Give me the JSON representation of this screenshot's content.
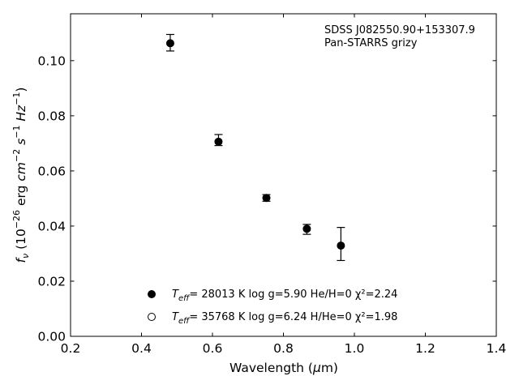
{
  "chart_data": {
    "type": "scatter",
    "xlabel_prefix": "Wavelength (",
    "xlabel_unit_greek": "μ",
    "xlabel_unit_rest": "m)",
    "ylabel": "f_ν (10^-26 erg cm^-2 s^-1 Hz^-1)",
    "xlim": [
      0.2,
      1.4
    ],
    "ylim": [
      0.0,
      0.117
    ],
    "x_ticks": [
      0.2,
      0.4,
      0.6,
      0.8,
      1.0,
      1.2,
      1.4
    ],
    "x_tick_labels": [
      "0.2",
      "0.4",
      "0.6",
      "0.8",
      "1.0",
      "1.2",
      "1.4"
    ],
    "y_ticks": [
      0.0,
      0.02,
      0.04,
      0.06,
      0.08,
      0.1
    ],
    "y_tick_labels": [
      "0.00",
      "0.02",
      "0.04",
      "0.06",
      "0.08",
      "0.10"
    ],
    "grid": false,
    "annotation": [
      "SDSS J082550.90+153307.9",
      "Pan-STARRS grizy"
    ],
    "series": [
      {
        "kind": "observed",
        "x": [
          0.481,
          0.617,
          0.752,
          0.866,
          0.962
        ],
        "y": [
          0.1065,
          0.0712,
          0.0502,
          0.0388,
          0.0335
        ],
        "yerr": [
          0.003,
          0.002,
          0.0012,
          0.0018,
          0.006
        ],
        "marker": "errorbar"
      },
      {
        "kind": "model",
        "x": [
          0.481,
          0.617,
          0.752,
          0.866,
          0.962
        ],
        "y": [
          0.1063,
          0.0706,
          0.0502,
          0.039,
          0.0329
        ],
        "marker": "filled-circle",
        "legend": {
          "teff_symbol": "T",
          "teff_sub": "eff",
          "text": "= 28013 K  log g=5.90  He/H=0  χ²=2.24"
        }
      },
      {
        "kind": "model",
        "x": [],
        "y": [],
        "marker": "open-circle",
        "legend": {
          "teff_symbol": "T",
          "teff_sub": "eff",
          "text": "= 35768 K  log g=6.24  H/He=0  χ²=1.98"
        }
      }
    ],
    "legend_position": "lower-center"
  }
}
